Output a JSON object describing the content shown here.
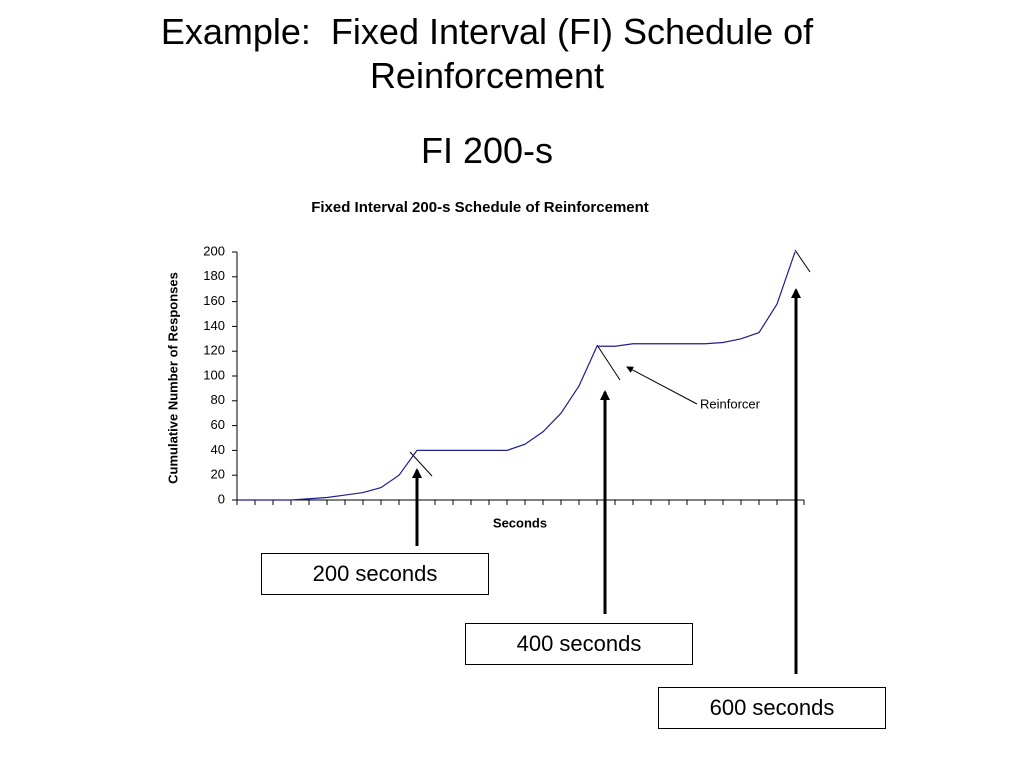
{
  "slide": {
    "title": "Example:  Fixed Interval (FI) Schedule of Reinforcement",
    "subtitle": "FI 200-s",
    "callouts": [
      "200 seconds",
      "400 seconds",
      "600 seconds"
    ]
  },
  "chart_data": {
    "type": "line",
    "title": "Fixed Interval 200-s Schedule of Reinforcement",
    "x_label": "Seconds",
    "y_label": "Cumulative Number of Responses",
    "categories": [
      null,
      null,
      null,
      null,
      null,
      null,
      null,
      null,
      null,
      null,
      null,
      null,
      null,
      null,
      null,
      null,
      null,
      null,
      null,
      null,
      null,
      null,
      null,
      null,
      null,
      null,
      null,
      null,
      null,
      null,
      null,
      null
    ],
    "series": [
      {
        "name": null,
        "color": "#1f1f8f",
        "values": [
          0,
          0,
          0,
          0,
          1,
          2,
          4,
          6,
          10,
          20,
          40,
          40,
          40,
          40,
          40,
          40,
          45,
          55,
          70,
          92,
          124,
          124,
          126,
          126,
          126,
          126,
          126,
          127,
          130,
          135,
          158,
          200
        ]
      }
    ],
    "ylim": [
      0,
      200
    ],
    "yticks": [
      0,
      20,
      40,
      60,
      80,
      100,
      120,
      140,
      160,
      180,
      200
    ],
    "annotation": "Reinforcer"
  }
}
